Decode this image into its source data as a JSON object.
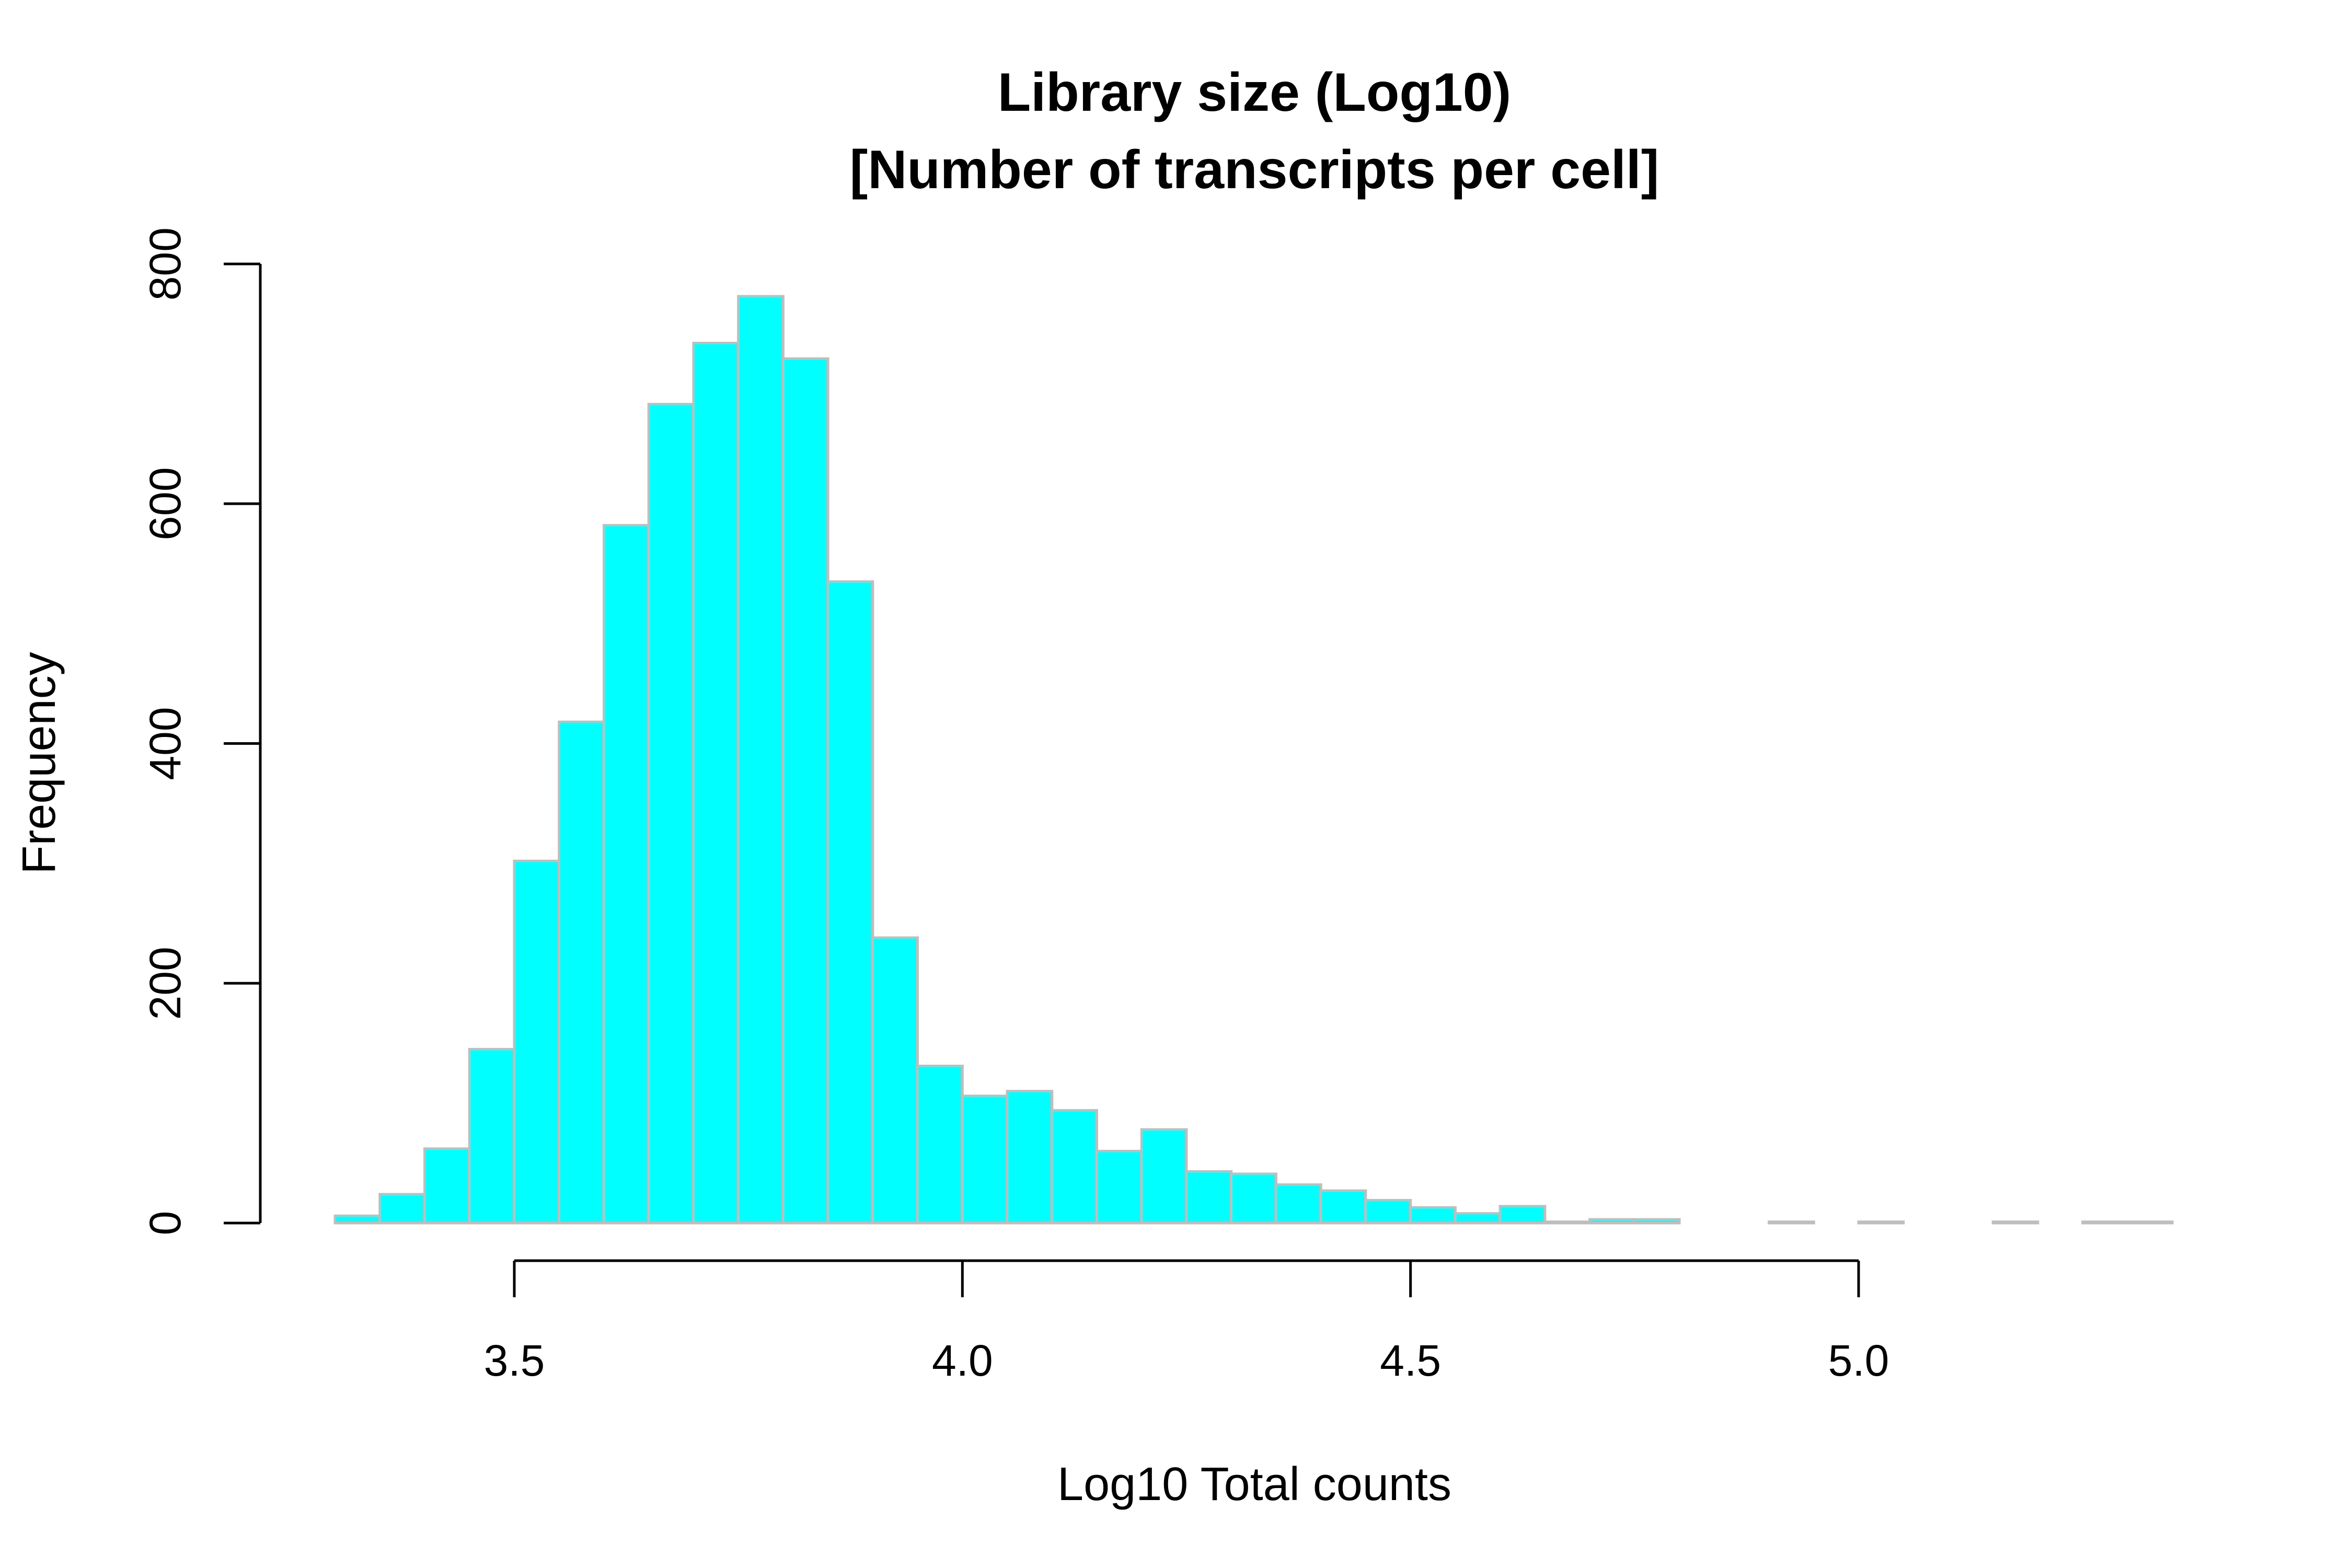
{
  "chart_data": {
    "type": "bar",
    "title": [
      "Library size (Log10)",
      "[Number of transcripts per cell]"
    ],
    "xlabel": "Log10 Total counts",
    "ylabel": "Frequency",
    "bin_width": 0.05,
    "bins_start": [
      3.3,
      3.35,
      3.4,
      3.45,
      3.5,
      3.55,
      3.6,
      3.65,
      3.7,
      3.75,
      3.8,
      3.85,
      3.9,
      3.95,
      4.0,
      4.05,
      4.1,
      4.15,
      4.2,
      4.25,
      4.3,
      4.35,
      4.4,
      4.45,
      4.5,
      4.55,
      4.6,
      4.65,
      4.7,
      4.75,
      4.8,
      4.85,
      4.9,
      4.95,
      5.0,
      5.05,
      5.1,
      5.15,
      5.2,
      5.25,
      5.3
    ],
    "values": [
      6,
      24,
      62,
      145,
      302,
      418,
      582,
      683,
      734,
      773,
      721,
      535,
      238,
      131,
      106,
      110,
      94,
      60,
      78,
      43,
      41,
      32,
      27,
      19,
      13,
      8,
      14,
      1,
      3,
      3,
      0,
      0,
      1,
      0,
      1,
      0,
      0,
      1,
      0,
      1,
      1
    ],
    "xlim": [
      3.3,
      5.35
    ],
    "ylim": [
      0,
      800
    ],
    "x_ticks": [
      3.5,
      4.0,
      4.5,
      5.0
    ],
    "x_tick_labels": [
      "3.5",
      "4.0",
      "4.5",
      "5.0"
    ],
    "y_ticks": [
      0,
      200,
      400,
      600,
      800
    ],
    "y_tick_labels": [
      "0",
      "200",
      "400",
      "600",
      "800"
    ],
    "grid": false,
    "bar_color": "#00FFFF",
    "bar_border_color": "#BEBEBE"
  }
}
